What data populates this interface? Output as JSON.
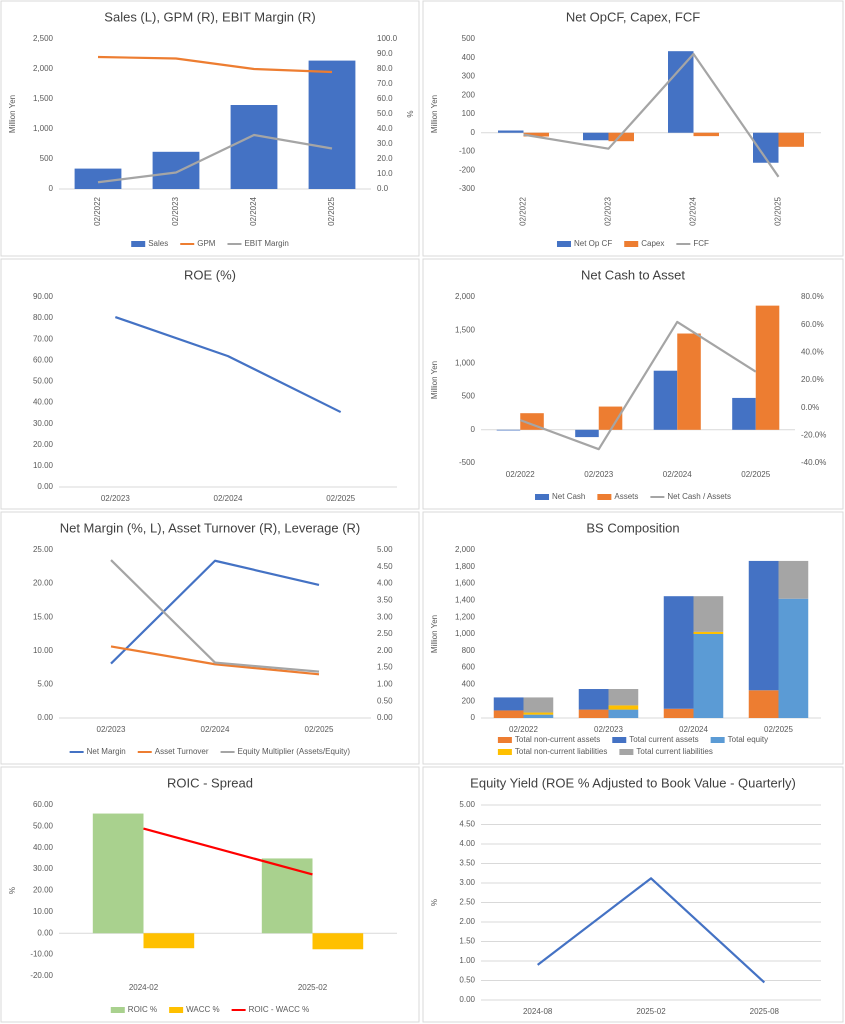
{
  "chart_data": [
    {
      "type": "bar",
      "title": "Sales (L), GPM (R), EBIT Margin (R)",
      "ylabel": "Million Yen",
      "y2label": "%",
      "categories": [
        "02/2022",
        "02/2023",
        "02/2024",
        "02/2025"
      ],
      "series": [
        {
          "name": "Sales",
          "type": "bar",
          "color": "#4472c4",
          "values": [
            340,
            620,
            1400,
            2140
          ]
        },
        {
          "name": "GPM",
          "type": "line",
          "axis": "y2",
          "color": "#ed7d31",
          "values": [
            88,
            87,
            80,
            78
          ]
        },
        {
          "name": "EBIT Margin",
          "type": "line",
          "axis": "y2",
          "color": "#a5a5a5",
          "values": [
            4.5,
            11,
            36,
            27
          ]
        }
      ],
      "ylim": [
        0,
        2500
      ],
      "yticks": [
        0,
        500,
        {
          "value": 1000,
          "label": "1,000"
        },
        {
          "value": 1500,
          "label": "1,500"
        },
        {
          "value": 2000,
          "label": "2,000"
        },
        {
          "value": 2500,
          "label": "2,500"
        }
      ],
      "y2lim": [
        0,
        100
      ],
      "y2ticks": [
        {
          "value": 0,
          "label": "0.0"
        },
        {
          "value": 10,
          "label": "10.0"
        },
        {
          "value": 20,
          "label": "20.0"
        },
        {
          "value": 30,
          "label": "30.0"
        },
        {
          "value": 40,
          "label": "40.0"
        },
        {
          "value": 50,
          "label": "50.0"
        },
        {
          "value": 60,
          "label": "60.0"
        },
        {
          "value": 70,
          "label": "70.0"
        },
        {
          "value": 80,
          "label": "80.0"
        },
        {
          "value": 90,
          "label": "90.0"
        },
        {
          "value": 100,
          "label": "100.0"
        }
      ],
      "grid": false,
      "legend": "bottom"
    },
    {
      "type": "bar",
      "title": "Net OpCF, Capex, FCF",
      "ylabel": "Million Yen",
      "categories": [
        "02/2022",
        "02/2023",
        "02/2024",
        "02/2025"
      ],
      "series": [
        {
          "name": "Net Op CF",
          "type": "bar",
          "color": "#4472c4",
          "values": [
            12,
            -40,
            435,
            -160
          ]
        },
        {
          "name": "Capex",
          "type": "bar",
          "color": "#ed7d31",
          "values": [
            -20,
            -45,
            -18,
            -75
          ]
        },
        {
          "name": "FCF",
          "type": "line",
          "color": "#a5a5a5",
          "values": [
            -10,
            -85,
            420,
            -235
          ]
        }
      ],
      "ylim": [
        -300,
        500
      ],
      "yticks": [
        -300,
        -200,
        -100,
        0,
        100,
        200,
        300,
        400,
        500
      ],
      "grid": false,
      "legend": "bottom"
    },
    {
      "type": "line",
      "title": "ROE (%)",
      "categories": [
        "02/2023",
        "02/2024",
        "02/2025"
      ],
      "values": [
        80.5,
        62,
        35.5
      ],
      "color": "#4472c4",
      "ylim": [
        0,
        90
      ],
      "yticks": [
        {
          "value": 0,
          "label": "0.00"
        },
        {
          "value": 10,
          "label": "10.00"
        },
        {
          "value": 20,
          "label": "20.00"
        },
        {
          "value": 30,
          "label": "30.00"
        },
        {
          "value": 40,
          "label": "40.00"
        },
        {
          "value": 50,
          "label": "50.00"
        },
        {
          "value": 60,
          "label": "60.00"
        },
        {
          "value": 70,
          "label": "70.00"
        },
        {
          "value": 80,
          "label": "80.00"
        },
        {
          "value": 90,
          "label": "90.00"
        }
      ],
      "grid": false
    },
    {
      "type": "bar",
      "title": "Net Cash to Asset",
      "ylabel": "Million Yen",
      "categories": [
        "02/2022",
        "02/2023",
        "02/2024",
        "02/2025"
      ],
      "series": [
        {
          "name": "Net Cash",
          "type": "bar",
          "color": "#4472c4",
          "values": [
            -10,
            -110,
            890,
            480
          ]
        },
        {
          "name": "Assets",
          "type": "bar",
          "color": "#ed7d31",
          "values": [
            250,
            350,
            1450,
            1870
          ]
        },
        {
          "name": "Net Cash / Assets",
          "type": "line",
          "axis": "y2",
          "color": "#a5a5a5",
          "values": [
            -9,
            -30,
            62,
            26
          ]
        }
      ],
      "ylim": [
        -500,
        2000
      ],
      "yticks": [
        -500,
        0,
        500,
        {
          "value": 1000,
          "label": "1,000"
        },
        {
          "value": 1500,
          "label": "1,500"
        },
        {
          "value": 2000,
          "label": "2,000"
        }
      ],
      "y2lim": [
        -40,
        80
      ],
      "y2ticks": [
        {
          "value": -40,
          "label": "-40.0%"
        },
        {
          "value": -20,
          "label": "-20.0%"
        },
        {
          "value": 0,
          "label": "0.0%"
        },
        {
          "value": 20,
          "label": "20.0%"
        },
        {
          "value": 40,
          "label": "40.0%"
        },
        {
          "value": 60,
          "label": "60.0%"
        },
        {
          "value": 80,
          "label": "80.0%"
        }
      ],
      "grid": false,
      "legend": "bottom"
    },
    {
      "type": "line",
      "title": "Net Margin (%, L), Asset Turnover (R), Leverage (R)",
      "categories": [
        "02/2023",
        "02/2024",
        "02/2025"
      ],
      "series": [
        {
          "name": "Net Margin",
          "color": "#4472c4",
          "values": [
            8.1,
            23.4,
            19.8
          ]
        },
        {
          "name": "Asset Turnover",
          "axis": "y2",
          "color": "#ed7d31",
          "values": [
            2.13,
            1.6,
            1.3
          ]
        },
        {
          "name": "Equity Multiplier (Assets/Equity)",
          "axis": "y2",
          "color": "#a5a5a5",
          "values": [
            4.7,
            1.65,
            1.38
          ]
        }
      ],
      "ylim": [
        0,
        25
      ],
      "yticks": [
        {
          "value": 0,
          "label": "0.00"
        },
        {
          "value": 5,
          "label": "5.00"
        },
        {
          "value": 10,
          "label": "10.00"
        },
        {
          "value": 15,
          "label": "15.00"
        },
        {
          "value": 20,
          "label": "20.00"
        },
        {
          "value": 25,
          "label": "25.00"
        }
      ],
      "y2lim": [
        0,
        5
      ],
      "y2ticks": [
        {
          "value": 0,
          "label": "0.00"
        },
        {
          "value": 0.5,
          "label": "0.50"
        },
        {
          "value": 1,
          "label": "1.00"
        },
        {
          "value": 1.5,
          "label": "1.50"
        },
        {
          "value": 2,
          "label": "2.00"
        },
        {
          "value": 2.5,
          "label": "2.50"
        },
        {
          "value": 3,
          "label": "3.00"
        },
        {
          "value": 3.5,
          "label": "3.50"
        },
        {
          "value": 4,
          "label": "4.00"
        },
        {
          "value": 4.5,
          "label": "4.50"
        },
        {
          "value": 5,
          "label": "5.00"
        }
      ],
      "grid": false,
      "legend": "bottom"
    },
    {
      "type": "bar",
      "title": "BS Composition",
      "ylabel": "Million Yen",
      "stacked": true,
      "categories": [
        "02/2022",
        "02/2023",
        "02/2024",
        "02/2025"
      ],
      "series": [
        {
          "name": "Total non-current assets",
          "stack": 0,
          "color": "#ed7d31",
          "values": [
            90,
            100,
            110,
            330
          ]
        },
        {
          "name": "Total current assets",
          "stack": 0,
          "color": "#4472c4",
          "values": [
            155,
            245,
            1340,
            1540
          ]
        },
        {
          "name": "Total equity",
          "stack": 1,
          "color": "#5b9bd5",
          "values": [
            40,
            100,
            1000,
            1420
          ]
        },
        {
          "name": "Total non-current liabilities",
          "stack": 1,
          "color": "#ffc000",
          "values": [
            25,
            50,
            25,
            0
          ]
        },
        {
          "name": "Total current liabilities",
          "stack": 1,
          "color": "#a5a5a5",
          "values": [
            180,
            195,
            425,
            450
          ]
        }
      ],
      "ylim": [
        0,
        2000
      ],
      "yticks": [
        0,
        200,
        400,
        600,
        800,
        {
          "value": 1000,
          "label": "1,000"
        },
        {
          "value": 1200,
          "label": "1,200"
        },
        {
          "value": 1400,
          "label": "1,400"
        },
        {
          "value": 1600,
          "label": "1,600"
        },
        {
          "value": 1800,
          "label": "1,800"
        },
        {
          "value": 2000,
          "label": "2,000"
        }
      ],
      "grid": false,
      "legend": "bottom"
    },
    {
      "type": "bar",
      "title": "ROIC - Spread",
      "ylabel": "%",
      "categories": [
        "2024-02",
        "2025-02"
      ],
      "series": [
        {
          "name": "ROIC %",
          "type": "bar",
          "color": "#a9d18e",
          "values": [
            56,
            35
          ]
        },
        {
          "name": "WACC %",
          "type": "bar",
          "color": "#ffc000",
          "values": [
            -7,
            -7.5
          ]
        },
        {
          "name": "ROIC - WACC %",
          "type": "line",
          "color": "#ff0000",
          "values": [
            49,
            27.5
          ]
        }
      ],
      "ylim": [
        -20,
        60
      ],
      "yticks": [
        {
          "value": -20,
          "label": "-20.00"
        },
        {
          "value": -10,
          "label": "-10.00"
        },
        {
          "value": 0,
          "label": "0.00"
        },
        {
          "value": 10,
          "label": "10.00"
        },
        {
          "value": 20,
          "label": "20.00"
        },
        {
          "value": 30,
          "label": "30.00"
        },
        {
          "value": 40,
          "label": "40.00"
        },
        {
          "value": 50,
          "label": "50.00"
        },
        {
          "value": 60,
          "label": "60.00"
        }
      ],
      "grid": false,
      "legend": "bottom"
    },
    {
      "type": "line",
      "title": "Equity Yield (ROE % Adjusted to Book Value - Quarterly)",
      "ylabel": "%",
      "categories": [
        "2024-08",
        "2025-02",
        "2025-08"
      ],
      "values": [
        0.9,
        3.12,
        0.45
      ],
      "color": "#4472c4",
      "ylim": [
        0,
        5
      ],
      "yticks": [
        {
          "value": 0,
          "label": "0.00"
        },
        {
          "value": 0.5,
          "label": "0.50"
        },
        {
          "value": 1,
          "label": "1.00"
        },
        {
          "value": 1.5,
          "label": "1.50"
        },
        {
          "value": 2,
          "label": "2.00"
        },
        {
          "value": 2.5,
          "label": "2.50"
        },
        {
          "value": 3,
          "label": "3.00"
        },
        {
          "value": 3.5,
          "label": "3.50"
        },
        {
          "value": 4,
          "label": "4.00"
        },
        {
          "value": 4.5,
          "label": "4.50"
        },
        {
          "value": 5,
          "label": "5.00"
        }
      ],
      "grid": true
    }
  ]
}
